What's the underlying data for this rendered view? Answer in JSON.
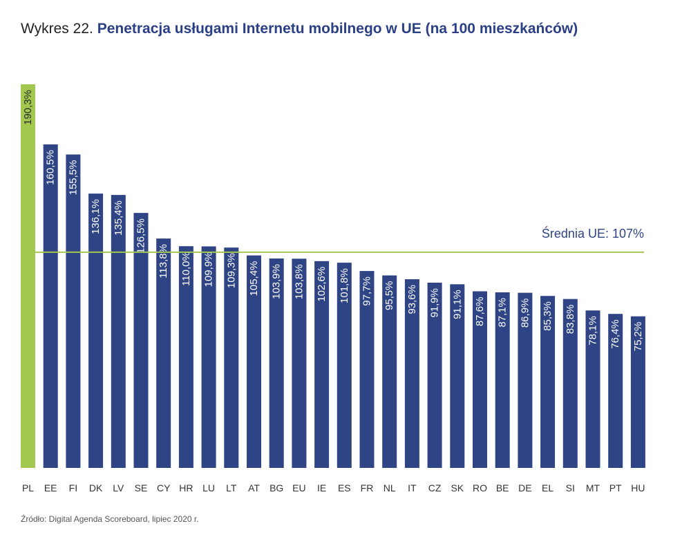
{
  "header": {
    "title_prefix": "Wykres 22.",
    "title_main": "Penetracja usługami Internetu mobilnego w UE (na 100 mieszkańców)"
  },
  "footer": {
    "source": "Źródło: Digital Agenda Scoreboard, lipiec 2020 r."
  },
  "colors": {
    "bar": "#2e4485",
    "highlight": "#a3c850",
    "average_line": "#a3c850",
    "average_text": "#2e4485",
    "label_text": "#ffffff",
    "axis_text": "#333333"
  },
  "chart_data": {
    "type": "bar",
    "title": "Penetracja usługami Internetu mobilnego w UE (na 100 mieszkańców)",
    "xlabel": "",
    "ylabel": "",
    "ylim": [
      0,
      190.3
    ],
    "highlight_category": "PL",
    "categories": [
      "PL",
      "EE",
      "FI",
      "DK",
      "LV",
      "SE",
      "CY",
      "HR",
      "LU",
      "LT",
      "AT",
      "BG",
      "EU",
      "IE",
      "ES",
      "FR",
      "NL",
      "IT",
      "CZ",
      "SK",
      "RO",
      "BE",
      "DE",
      "EL",
      "SI",
      "MT",
      "PT",
      "HU"
    ],
    "values": [
      190.3,
      160.5,
      155.5,
      136.1,
      135.4,
      126.5,
      113.8,
      110.0,
      109.9,
      109.3,
      105.4,
      103.9,
      103.8,
      102.6,
      101.8,
      97.7,
      95.5,
      93.6,
      91.9,
      91.1,
      87.6,
      87.1,
      86.9,
      85.3,
      83.8,
      78.1,
      76.4,
      75.2
    ],
    "value_labels": [
      "190,3%",
      "160,5%",
      "155,5%",
      "136,1%",
      "135,4%",
      "126,5%",
      "113,8%",
      "110,0%",
      "109,9%",
      "109,3%",
      "105,4%",
      "103,9%",
      "103,8%",
      "102,6%",
      "101,8%",
      "97,7%",
      "95,5%",
      "93,6%",
      "91,9%",
      "91,1%",
      "87,6%",
      "87,1%",
      "86,9%",
      "85,3%",
      "83,8%",
      "78,1%",
      "76,4%",
      "75,2%"
    ],
    "average": {
      "value": 107,
      "label": "Średnia UE: 107%"
    },
    "grid": false,
    "legend": "none"
  }
}
